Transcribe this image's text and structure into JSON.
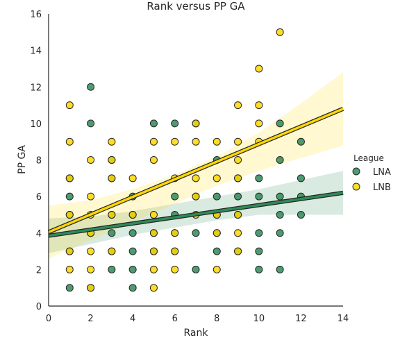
{
  "chart_data": {
    "type": "scatter",
    "title": "Rank versus PP GA",
    "xlabel": "Rank",
    "ylabel": "PP GA",
    "xlim": [
      0,
      14
    ],
    "ylim": [
      0,
      16
    ],
    "xticks": [
      "0",
      "2",
      "4",
      "6",
      "8",
      "10",
      "12",
      "14"
    ],
    "yticks": [
      "0",
      "2",
      "4",
      "6",
      "8",
      "10",
      "12",
      "14",
      "16"
    ],
    "grid": false,
    "legend": {
      "title": "League",
      "placement": "right"
    },
    "series": [
      {
        "name": "LNA",
        "color": "#2e8b57",
        "regression": {
          "start": [
            0,
            3.85
          ],
          "end": [
            14,
            6.2
          ]
        },
        "ci": {
          "upper": [
            [
              0,
              4.8
            ],
            [
              2,
              4.9
            ],
            [
              4,
              5.2
            ],
            [
              6,
              5.6
            ],
            [
              8,
              6.0
            ],
            [
              10,
              6.4
            ],
            [
              12,
              6.9
            ],
            [
              14,
              7.4
            ]
          ],
          "lower": [
            [
              0,
              2.9
            ],
            [
              2,
              3.4
            ],
            [
              4,
              3.9
            ],
            [
              6,
              4.3
            ],
            [
              8,
              4.7
            ],
            [
              10,
              5.0
            ],
            [
              12,
              5.0
            ],
            [
              14,
              5.0
            ]
          ]
        },
        "points": [
          [
            1,
            1
          ],
          [
            1,
            3
          ],
          [
            1,
            5
          ],
          [
            1,
            6
          ],
          [
            1,
            7
          ],
          [
            2,
            1
          ],
          [
            2,
            4
          ],
          [
            2,
            10
          ],
          [
            2,
            12
          ],
          [
            3,
            2
          ],
          [
            3,
            3
          ],
          [
            3,
            4
          ],
          [
            3,
            5
          ],
          [
            3,
            7
          ],
          [
            3,
            8
          ],
          [
            4,
            1
          ],
          [
            4,
            2
          ],
          [
            4,
            3
          ],
          [
            4,
            4
          ],
          [
            4,
            5
          ],
          [
            4,
            6
          ],
          [
            5,
            3
          ],
          [
            5,
            4
          ],
          [
            5,
            10
          ],
          [
            6,
            3
          ],
          [
            6,
            4
          ],
          [
            6,
            5
          ],
          [
            6,
            6
          ],
          [
            6,
            10
          ],
          [
            7,
            2
          ],
          [
            7,
            4
          ],
          [
            7,
            6
          ],
          [
            7,
            10
          ],
          [
            8,
            3
          ],
          [
            8,
            4
          ],
          [
            8,
            5
          ],
          [
            8,
            6
          ],
          [
            8,
            8
          ],
          [
            9,
            3
          ],
          [
            9,
            5
          ],
          [
            9,
            6
          ],
          [
            9,
            7
          ],
          [
            10,
            2
          ],
          [
            10,
            3
          ],
          [
            10,
            4
          ],
          [
            10,
            6
          ],
          [
            10,
            7
          ],
          [
            11,
            2
          ],
          [
            11,
            4
          ],
          [
            11,
            5
          ],
          [
            11,
            6
          ],
          [
            11,
            8
          ],
          [
            11,
            10
          ],
          [
            12,
            5
          ],
          [
            12,
            6
          ],
          [
            12,
            7
          ],
          [
            12,
            9
          ]
        ]
      },
      {
        "name": "LNB",
        "color": "#ffd700",
        "regression": {
          "start": [
            0,
            4.05
          ],
          "end": [
            14,
            10.8
          ]
        },
        "ci": {
          "upper": [
            [
              0,
              5.5
            ],
            [
              2,
              5.8
            ],
            [
              4,
              6.4
            ],
            [
              6,
              7.2
            ],
            [
              8,
              8.2
            ],
            [
              10,
              9.5
            ],
            [
              12,
              11.1
            ],
            [
              14,
              12.8
            ]
          ],
          "lower": [
            [
              0,
              2.6
            ],
            [
              2,
              3.6
            ],
            [
              4,
              4.6
            ],
            [
              6,
              5.6
            ],
            [
              8,
              6.6
            ],
            [
              10,
              7.4
            ],
            [
              12,
              8.1
            ],
            [
              14,
              8.8
            ]
          ]
        },
        "points": [
          [
            1,
            2
          ],
          [
            1,
            3
          ],
          [
            1,
            5
          ],
          [
            1,
            7
          ],
          [
            1,
            9
          ],
          [
            1,
            11
          ],
          [
            2,
            1
          ],
          [
            2,
            2
          ],
          [
            2,
            3
          ],
          [
            2,
            4
          ],
          [
            2,
            5
          ],
          [
            2,
            6
          ],
          [
            2,
            8
          ],
          [
            3,
            3
          ],
          [
            3,
            5
          ],
          [
            3,
            7
          ],
          [
            3,
            8
          ],
          [
            3,
            9
          ],
          [
            4,
            5
          ],
          [
            4,
            7
          ],
          [
            5,
            1
          ],
          [
            5,
            2
          ],
          [
            5,
            3
          ],
          [
            5,
            4
          ],
          [
            5,
            5
          ],
          [
            5,
            8
          ],
          [
            5,
            9
          ],
          [
            6,
            2
          ],
          [
            6,
            3
          ],
          [
            6,
            4
          ],
          [
            6,
            7
          ],
          [
            6,
            9
          ],
          [
            7,
            5
          ],
          [
            7,
            6
          ],
          [
            7,
            7
          ],
          [
            7,
            9
          ],
          [
            7,
            10
          ],
          [
            8,
            2
          ],
          [
            8,
            4
          ],
          [
            8,
            5
          ],
          [
            8,
            7
          ],
          [
            8,
            9
          ],
          [
            9,
            3
          ],
          [
            9,
            4
          ],
          [
            9,
            5
          ],
          [
            9,
            7
          ],
          [
            9,
            8
          ],
          [
            9,
            9
          ],
          [
            9,
            11
          ],
          [
            10,
            9
          ],
          [
            10,
            10
          ],
          [
            10,
            11
          ],
          [
            10,
            13
          ],
          [
            11,
            15
          ]
        ]
      }
    ]
  }
}
